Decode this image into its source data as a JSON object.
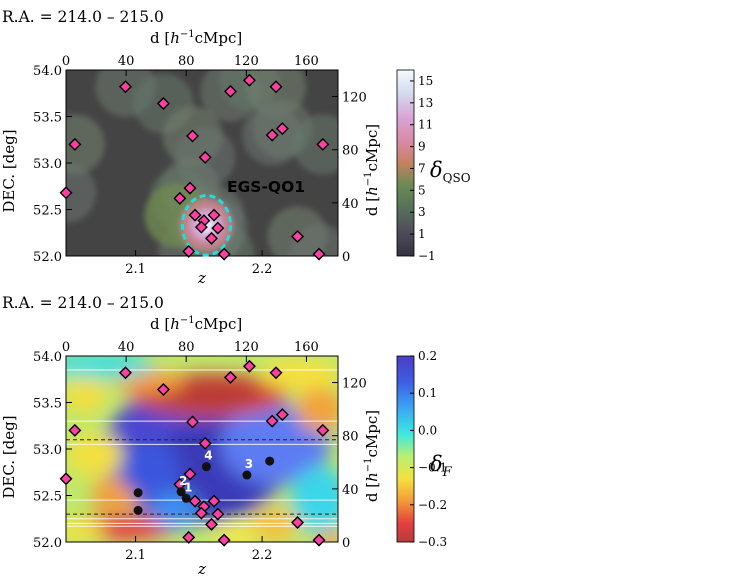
{
  "chart_data": [
    {
      "type": "heatmap",
      "id": "qso",
      "label": "R.A. = 214.0 – 215.0",
      "label_color": "#ff0000",
      "xlabel": "z",
      "ylabel": "DEC. [deg]",
      "top_xlabel": "d [h⁻¹cMpc]",
      "right_ylabel": "d [h⁻¹cMpc]",
      "xlim": [
        2.045,
        2.26
      ],
      "ylim": [
        52.0,
        54.0
      ],
      "xticks": [
        2.1,
        2.2
      ],
      "xtick_labels": [
        "2.1",
        "2.2"
      ],
      "yticks": [
        52.0,
        52.5,
        53.0,
        53.5,
        54.0
      ],
      "ytick_labels": [
        "52.0",
        "52.5",
        "53.0",
        "53.5",
        "54.0"
      ],
      "top_ticks": [
        0,
        40,
        80,
        120,
        160
      ],
      "top_tick_labels": [
        "0",
        "40",
        "80",
        "120",
        "160"
      ],
      "right_ticks": [
        0,
        40,
        80,
        120
      ],
      "right_tick_labels": [
        "0",
        "40",
        "80",
        "120"
      ],
      "colorbar_label": "δQSO",
      "colorbar_ticks": [
        -1,
        1,
        3,
        5,
        7,
        9,
        11,
        13,
        15
      ],
      "colorbar_tick_labels": [
        "−1",
        "1",
        "3",
        "5",
        "7",
        "9",
        "11",
        "13",
        "15"
      ],
      "colorbar_range": [
        -1,
        16
      ],
      "annotation": "EGS-QO1",
      "annotation_color": "#22dddd",
      "protocluster_center": {
        "z": 2.156,
        "dec": 52.33,
        "radius_z": 0.019,
        "radius_dec": 0.32
      },
      "qso_points": [
        {
          "z": 2.092,
          "dec": 53.82
        },
        {
          "z": 2.122,
          "dec": 53.64
        },
        {
          "z": 2.145,
          "dec": 53.29
        },
        {
          "z": 2.155,
          "dec": 53.06
        },
        {
          "z": 2.175,
          "dec": 53.77
        },
        {
          "z": 2.19,
          "dec": 53.89
        },
        {
          "z": 2.211,
          "dec": 53.82
        },
        {
          "z": 2.208,
          "dec": 53.3
        },
        {
          "z": 2.216,
          "dec": 53.37
        },
        {
          "z": 2.248,
          "dec": 53.2
        },
        {
          "z": 2.052,
          "dec": 53.2
        },
        {
          "z": 2.045,
          "dec": 52.68
        },
        {
          "z": 2.143,
          "dec": 52.73
        },
        {
          "z": 2.135,
          "dec": 52.62
        },
        {
          "z": 2.147,
          "dec": 52.44
        },
        {
          "z": 2.154,
          "dec": 52.38
        },
        {
          "z": 2.162,
          "dec": 52.44
        },
        {
          "z": 2.152,
          "dec": 52.31
        },
        {
          "z": 2.16,
          "dec": 52.19
        },
        {
          "z": 2.165,
          "dec": 52.3
        },
        {
          "z": 2.142,
          "dec": 52.05
        },
        {
          "z": 2.17,
          "dec": 52.02
        },
        {
          "z": 2.228,
          "dec": 52.21
        },
        {
          "z": 2.245,
          "dec": 52.02
        }
      ]
    },
    {
      "type": "heatmap",
      "id": "igm",
      "label": "R.A. = 214.0 – 215.0",
      "label_color": "#ff0000",
      "xlabel": "z",
      "ylabel": "DEC. [deg]",
      "top_xlabel": "d [h⁻¹cMpc]",
      "right_ylabel": "d [h⁻¹cMpc]",
      "xlim": [
        2.045,
        2.26
      ],
      "ylim": [
        52.0,
        54.0
      ],
      "xticks": [
        2.1,
        2.2
      ],
      "xtick_labels": [
        "2.1",
        "2.2"
      ],
      "yticks": [
        52.0,
        52.5,
        53.0,
        53.5,
        54.0
      ],
      "ytick_labels": [
        "52.0",
        "52.5",
        "53.0",
        "53.5",
        "54.0"
      ],
      "top_ticks": [
        0,
        40,
        80,
        120,
        160
      ],
      "top_tick_labels": [
        "0",
        "40",
        "80",
        "120",
        "160"
      ],
      "right_ticks": [
        0,
        40,
        80,
        120
      ],
      "right_tick_labels": [
        "0",
        "40",
        "80",
        "120"
      ],
      "colorbar_label": "δF",
      "colorbar_ticks": [
        -0.3,
        -0.2,
        -0.1,
        0.0,
        0.1,
        0.2
      ],
      "colorbar_tick_labels": [
        "−0.3",
        "−0.2",
        "−0.1",
        "0.0",
        "0.1",
        "0.2"
      ],
      "colorbar_range": [
        -0.3,
        0.2
      ],
      "dashed_lines_dec": [
        53.1,
        52.3
      ],
      "sightline_dec": [
        53.85,
        53.3,
        53.05,
        52.45,
        52.25,
        52.2,
        52.17
      ],
      "qso_points": [
        {
          "z": 2.092,
          "dec": 53.82
        },
        {
          "z": 2.122,
          "dec": 53.64
        },
        {
          "z": 2.145,
          "dec": 53.29
        },
        {
          "z": 2.155,
          "dec": 53.06
        },
        {
          "z": 2.175,
          "dec": 53.77
        },
        {
          "z": 2.19,
          "dec": 53.89
        },
        {
          "z": 2.211,
          "dec": 53.82
        },
        {
          "z": 2.208,
          "dec": 53.3
        },
        {
          "z": 2.216,
          "dec": 53.37
        },
        {
          "z": 2.248,
          "dec": 53.2
        },
        {
          "z": 2.052,
          "dec": 53.2
        },
        {
          "z": 2.045,
          "dec": 52.68
        },
        {
          "z": 2.143,
          "dec": 52.73
        },
        {
          "z": 2.135,
          "dec": 52.62
        },
        {
          "z": 2.147,
          "dec": 52.44
        },
        {
          "z": 2.154,
          "dec": 52.38
        },
        {
          "z": 2.162,
          "dec": 52.44
        },
        {
          "z": 2.152,
          "dec": 52.31
        },
        {
          "z": 2.16,
          "dec": 52.19
        },
        {
          "z": 2.165,
          "dec": 52.3
        },
        {
          "z": 2.142,
          "dec": 52.05
        },
        {
          "z": 2.17,
          "dec": 52.02
        },
        {
          "z": 2.228,
          "dec": 52.21
        },
        {
          "z": 2.245,
          "dec": 52.02
        }
      ],
      "numbered_points": [
        {
          "label": "1",
          "z": 2.14,
          "dec": 52.47
        },
        {
          "label": "2",
          "z": 2.136,
          "dec": 52.54
        },
        {
          "label": "3",
          "z": 2.188,
          "dec": 52.72
        },
        {
          "label": "4",
          "z": 2.156,
          "dec": 52.81
        },
        {
          "label": "",
          "z": 2.206,
          "dec": 52.87
        },
        {
          "label": "",
          "z": 2.102,
          "dec": 52.53
        },
        {
          "label": "",
          "z": 2.102,
          "dec": 52.34
        }
      ]
    }
  ]
}
